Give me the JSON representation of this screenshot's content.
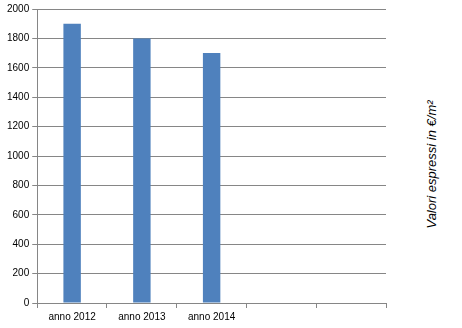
{
  "chart_data": {
    "type": "bar",
    "y_label": "Valori espressi in €/m²",
    "categories": [
      "anno 2012",
      "anno 2013",
      "anno 2014",
      null,
      null
    ],
    "values": [
      1900,
      1800,
      1700,
      null,
      null
    ],
    "color": "#4f81bd",
    "ylim": [
      0,
      2000
    ],
    "yticks": [
      0,
      200,
      400,
      600,
      800,
      1000,
      1200,
      1400,
      1600,
      1800,
      2000
    ],
    "grid": true
  }
}
